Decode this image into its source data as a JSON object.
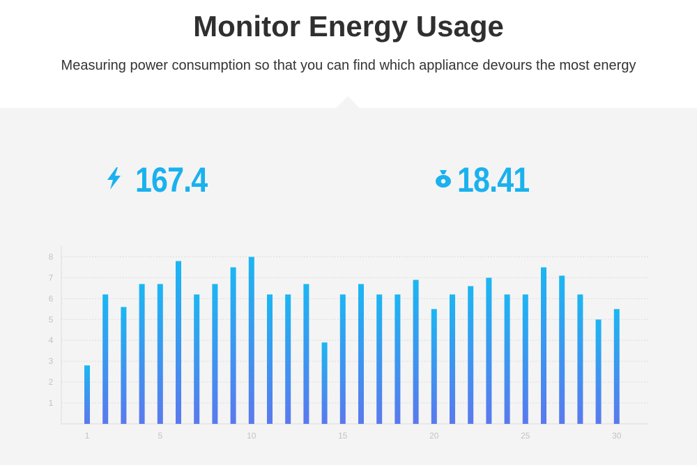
{
  "header": {
    "title": "Monitor Energy Usage",
    "subtitle": "Measuring power consumption so that you can find which appliance devours the most energy"
  },
  "stats": {
    "power": {
      "value": "167.4",
      "icon": "lightning-bolt-icon"
    },
    "cost": {
      "value": "18.41",
      "icon": "money-bag-icon"
    }
  },
  "colors": {
    "accent": "#1ab1ee",
    "bar_top": "#1cb6f2",
    "bar_bottom": "#5a79ee",
    "title": "#2f2f2f",
    "panel_bg": "#f4f4f4",
    "grid": "#dcdcdc",
    "tick": "#c3c3c3"
  },
  "chart_data": {
    "type": "bar",
    "x": [
      1,
      2,
      3,
      4,
      5,
      6,
      7,
      8,
      9,
      10,
      11,
      12,
      13,
      14,
      15,
      16,
      17,
      18,
      19,
      20,
      21,
      22,
      23,
      24,
      25,
      26,
      27,
      28,
      29,
      30
    ],
    "values": [
      2.8,
      6.2,
      5.6,
      6.7,
      6.7,
      7.8,
      6.2,
      6.7,
      7.5,
      8.0,
      6.2,
      6.2,
      6.7,
      3.9,
      6.2,
      6.7,
      6.2,
      6.2,
      6.9,
      5.5,
      6.2,
      6.6,
      7.0,
      6.2,
      6.2,
      7.5,
      7.1,
      6.2,
      5.0,
      5.5
    ],
    "x_ticks": [
      "1",
      "5",
      "10",
      "15",
      "20",
      "25",
      "30"
    ],
    "x_tick_values": [
      1,
      5,
      10,
      15,
      20,
      25,
      30
    ],
    "y_ticks": [
      "1",
      "2",
      "3",
      "4",
      "5",
      "6",
      "7",
      "8"
    ],
    "y_tick_values": [
      1,
      2,
      3,
      4,
      5,
      6,
      7,
      8
    ],
    "ylim": [
      0,
      8.15
    ],
    "grid": "horizontal",
    "title": "",
    "xlabel": "",
    "ylabel": ""
  }
}
